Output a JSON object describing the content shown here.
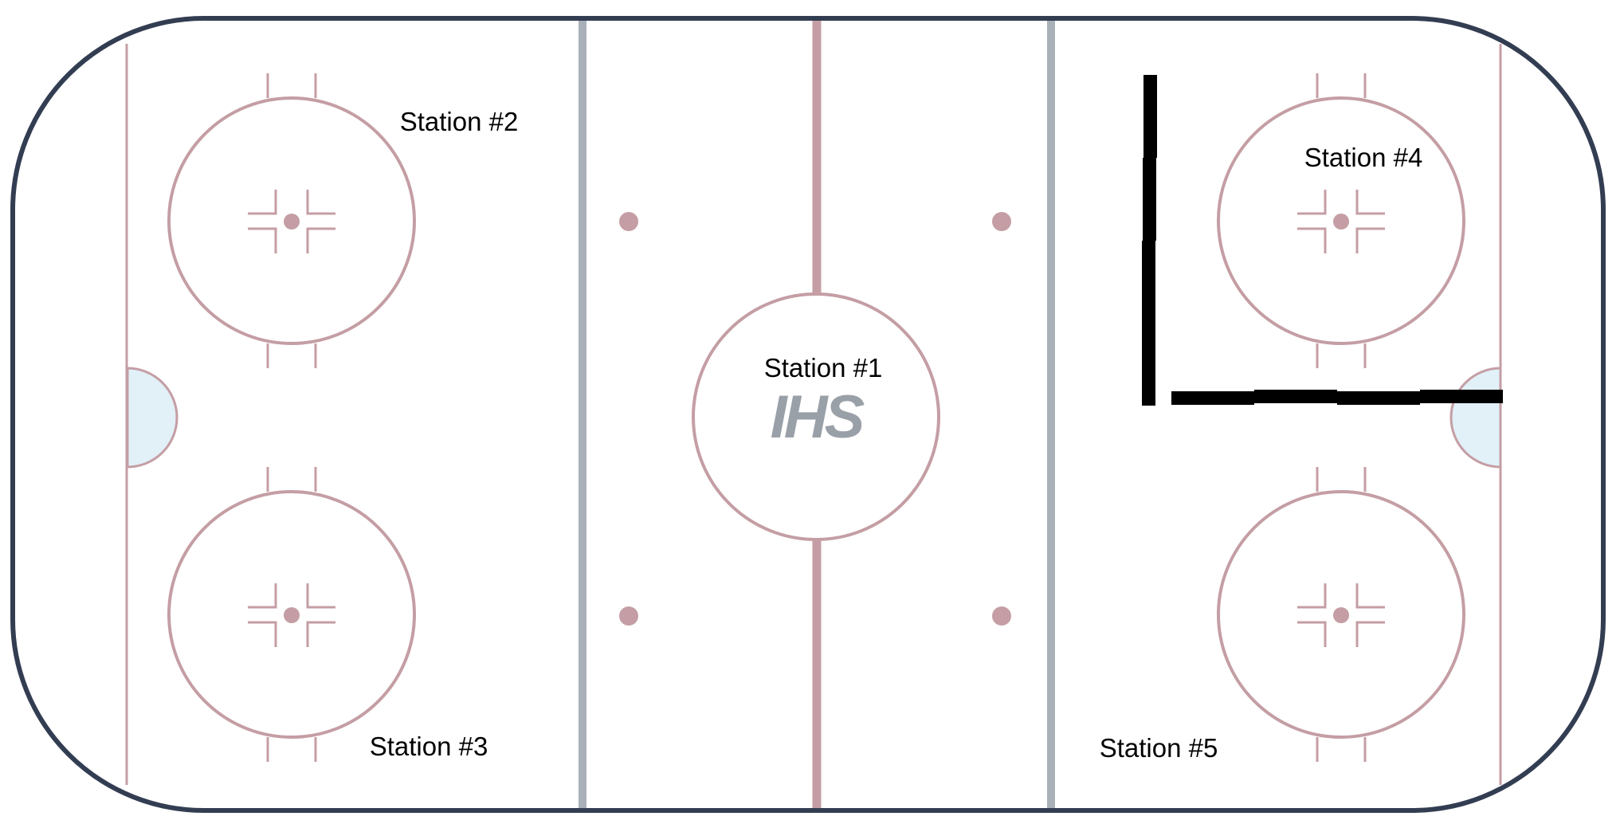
{
  "colors": {
    "board": "#333d52",
    "ice": "#ffffff",
    "red_line": "#c49ea4",
    "blue_line": "#a9b0b8",
    "crease": "#e2f0f8",
    "barrier": "#000000",
    "logo": "#9aa0a8",
    "label": "#000000"
  },
  "logo": {
    "text": "IHS"
  },
  "stations": [
    {
      "id": "1",
      "label": "Station #1"
    },
    {
      "id": "2",
      "label": "Station #2"
    },
    {
      "id": "3",
      "label": "Station #3"
    },
    {
      "id": "4",
      "label": "Station #4"
    },
    {
      "id": "5",
      "label": "Station #5"
    }
  ],
  "icons": [
    "hockey-rink",
    "faceoff-circle",
    "faceoff-dot",
    "goal-crease",
    "ihs-logo",
    "barrier"
  ]
}
